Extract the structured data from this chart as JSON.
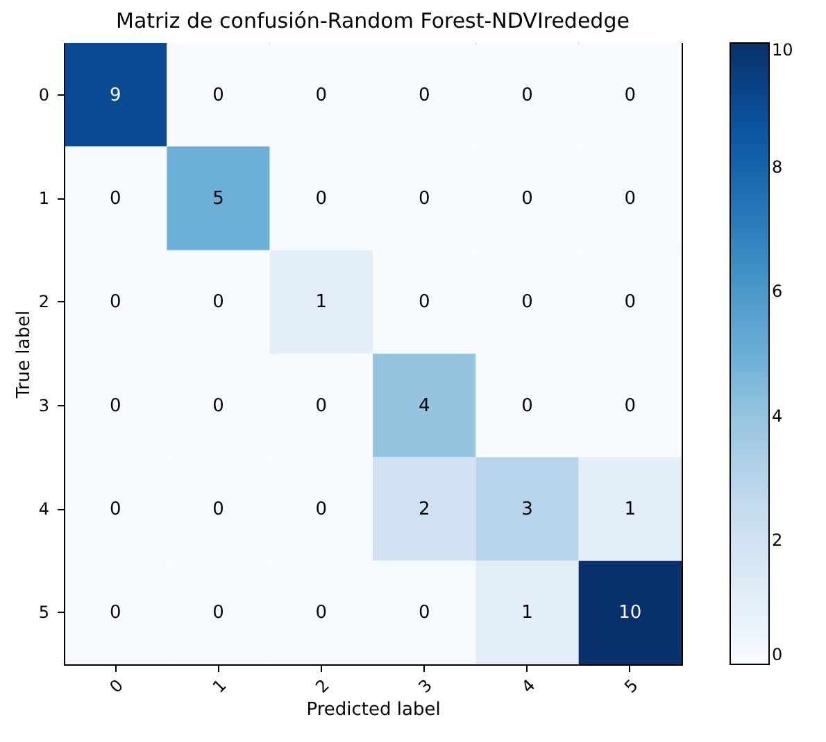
{
  "chart_data": {
    "type": "heatmap",
    "title": "Matriz de confusión-Random Forest-NDVIrededge",
    "xlabel": "Predicted label",
    "ylabel": "True label",
    "categories": [
      "0",
      "1",
      "2",
      "3",
      "4",
      "5"
    ],
    "y_categories": [
      "0",
      "1",
      "2",
      "3",
      "4",
      "5"
    ],
    "cells": [
      [
        9,
        0,
        0,
        0,
        0,
        0
      ],
      [
        0,
        5,
        0,
        0,
        0,
        0
      ],
      [
        0,
        0,
        1,
        0,
        0,
        0
      ],
      [
        0,
        0,
        0,
        4,
        0,
        0
      ],
      [
        0,
        0,
        0,
        2,
        3,
        1
      ],
      [
        0,
        0,
        0,
        0,
        1,
        10
      ]
    ],
    "clim": [
      0,
      10
    ],
    "cticks": [
      0,
      2,
      4,
      6,
      8,
      10
    ],
    "data_labels": true,
    "grid": false
  }
}
